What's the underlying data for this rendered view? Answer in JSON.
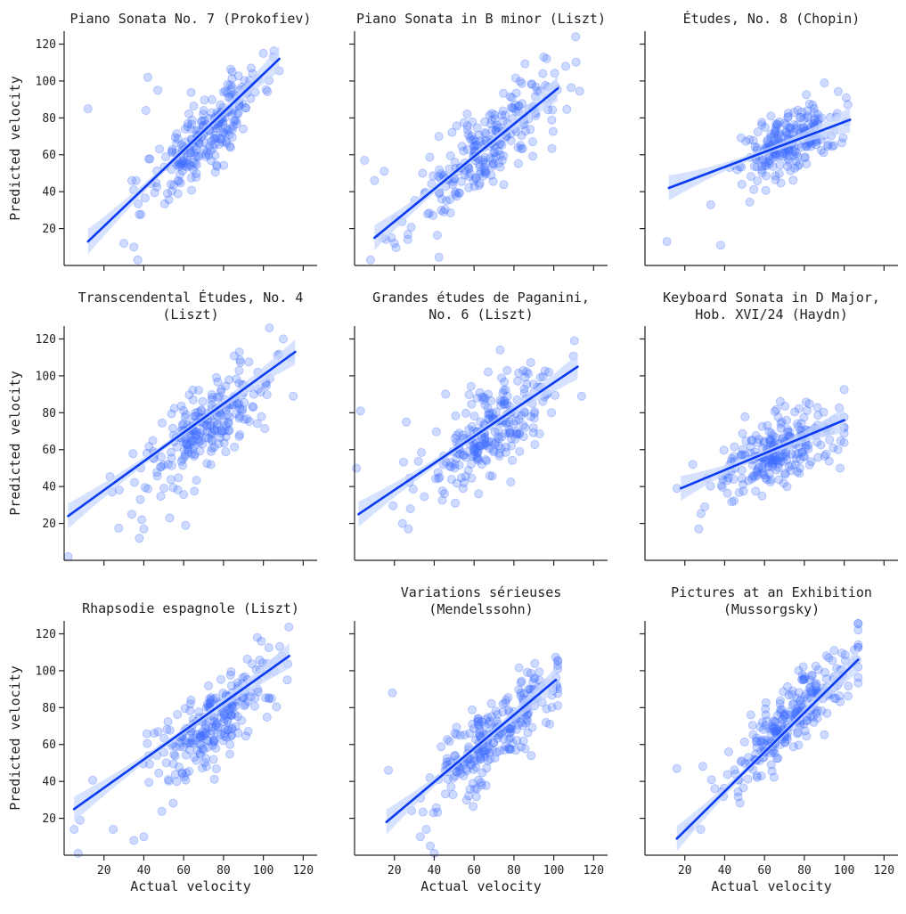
{
  "chart_data": {
    "type": "scatter",
    "layout": "3x3 facet grid with linear regression fit and confidence band",
    "xlabel": "Actual velocity",
    "ylabel": "Predicted velocity",
    "xlim": [
      0,
      127
    ],
    "ylim": [
      0,
      127
    ],
    "xticks": [
      20,
      40,
      60,
      80,
      100,
      120
    ],
    "yticks": [
      20,
      40,
      60,
      80,
      100,
      120
    ],
    "point_color": "#3b6bff",
    "line_color": "#0a3bf0",
    "band_color": "#c9d8ff",
    "panels": [
      {
        "title": [
          "Piano Sonata No. 7 (Prokofiev)"
        ],
        "x_range": [
          10,
          108
        ],
        "fit": [
          [
            12,
            13
          ],
          [
            108,
            112
          ]
        ],
        "center": [
          72,
          72
        ],
        "spread": [
          15,
          16
        ],
        "slope": 1.0,
        "noise": 10,
        "n": 240,
        "outliers": [
          [
            12,
            85
          ],
          [
            42,
            102
          ],
          [
            35,
            10
          ],
          [
            37,
            3
          ],
          [
            30,
            12
          ],
          [
            47,
            95
          ],
          [
            41,
            84
          ],
          [
            100,
            115
          ],
          [
            105,
            113
          ]
        ]
      },
      {
        "title": [
          "Piano Sonata in B minor (Liszt)"
        ],
        "x_range": [
          10,
          115
        ],
        "fit": [
          [
            10,
            15
          ],
          [
            102,
            96
          ]
        ],
        "center": [
          65,
          62
        ],
        "spread": [
          18,
          16
        ],
        "slope": 0.85,
        "noise": 12,
        "n": 250,
        "outliers": [
          [
            111,
            124
          ],
          [
            8,
            3
          ],
          [
            5,
            57
          ],
          [
            10,
            46
          ],
          [
            95,
            113
          ],
          [
            20,
            12
          ],
          [
            14,
            15
          ]
        ]
      },
      {
        "title": [
          "Études, No. 8 (Chopin)"
        ],
        "x_range": [
          12,
          103
        ],
        "fit": [
          [
            12,
            42
          ],
          [
            103,
            79
          ]
        ],
        "center": [
          72,
          66
        ],
        "spread": [
          12,
          9
        ],
        "slope": 0.45,
        "noise": 9,
        "n": 230,
        "outliers": [
          [
            11,
            13
          ],
          [
            38,
            11
          ],
          [
            33,
            33
          ],
          [
            90,
            99
          ],
          [
            101,
            91
          ]
        ]
      },
      {
        "title": [
          "Transcendental Études, No. 4",
          "(Liszt)"
        ],
        "x_range": [
          2,
          116
        ],
        "fit": [
          [
            2,
            24
          ],
          [
            116,
            113
          ]
        ],
        "center": [
          72,
          74
        ],
        "spread": [
          17,
          15
        ],
        "slope": 0.78,
        "noise": 11,
        "n": 240,
        "outliers": [
          [
            2,
            2
          ],
          [
            40,
            17
          ],
          [
            39,
            22
          ],
          [
            53,
            23
          ],
          [
            61,
            19
          ],
          [
            34,
            25
          ],
          [
            103,
            126
          ],
          [
            110,
            120
          ],
          [
            115,
            89
          ]
        ]
      },
      {
        "title": [
          "Grandes études de Paganini,",
          "No. 6 (Liszt)"
        ],
        "x_range": [
          2,
          115
        ],
        "fit": [
          [
            2,
            25
          ],
          [
            112,
            105
          ]
        ],
        "center": [
          70,
          71
        ],
        "spread": [
          17,
          15
        ],
        "slope": 0.72,
        "noise": 12,
        "n": 250,
        "outliers": [
          [
            3,
            81
          ],
          [
            1,
            50
          ],
          [
            26,
            75
          ],
          [
            27,
            17
          ],
          [
            24,
            20
          ],
          [
            28,
            28
          ],
          [
            114,
            89
          ]
        ]
      },
      {
        "title": [
          "Keyboard Sonata in D Major,",
          "Hob. XVI/24 (Haydn)"
        ],
        "x_range": [
          18,
          100
        ],
        "fit": [
          [
            18,
            39
          ],
          [
            100,
            76
          ]
        ],
        "center": [
          66,
          59
        ],
        "spread": [
          14,
          9
        ],
        "slope": 0.45,
        "noise": 9,
        "n": 250,
        "outliers": [
          [
            27,
            17
          ],
          [
            30,
            29
          ],
          [
            98,
            50
          ],
          [
            16,
            39
          ],
          [
            24,
            52
          ]
        ]
      },
      {
        "title": [
          "Rhapsodie espagnole (Liszt)"
        ],
        "x_range": [
          5,
          113
        ],
        "fit": [
          [
            5,
            25
          ],
          [
            113,
            108
          ]
        ],
        "center": [
          72,
          70
        ],
        "spread": [
          17,
          15
        ],
        "slope": 0.76,
        "noise": 11,
        "n": 240,
        "outliers": [
          [
            5,
            14
          ],
          [
            7,
            1
          ],
          [
            8,
            19
          ],
          [
            40,
            10
          ],
          [
            35,
            8
          ],
          [
            97,
            118
          ],
          [
            99,
            116
          ],
          [
            112,
            95
          ]
        ]
      },
      {
        "title": [
          "Variations sérieuses",
          "(Mendelssohn)"
        ],
        "x_range": [
          16,
          102
        ],
        "fit": [
          [
            16,
            18
          ],
          [
            101,
            95
          ]
        ],
        "center": [
          70,
          64
        ],
        "spread": [
          16,
          14
        ],
        "slope": 0.9,
        "noise": 10,
        "n": 260,
        "outliers": [
          [
            19,
            88
          ],
          [
            17,
            46
          ],
          [
            33,
            10
          ],
          [
            38,
            5
          ],
          [
            40,
            1
          ],
          [
            36,
            14
          ]
        ]
      },
      {
        "title": [
          "Pictures at an Exhibition",
          "(Mussorgsky)"
        ],
        "x_range": [
          16,
          107
        ],
        "fit": [
          [
            16,
            9
          ],
          [
            107,
            106
          ]
        ],
        "center": [
          76,
          76
        ],
        "spread": [
          17,
          17
        ],
        "slope": 1.0,
        "noise": 9,
        "n": 260,
        "outliers": [
          [
            16,
            47
          ],
          [
            42,
            56
          ],
          [
            22,
            15
          ],
          [
            28,
            14
          ],
          [
            95,
            111
          ],
          [
            104,
            104
          ]
        ]
      }
    ]
  }
}
